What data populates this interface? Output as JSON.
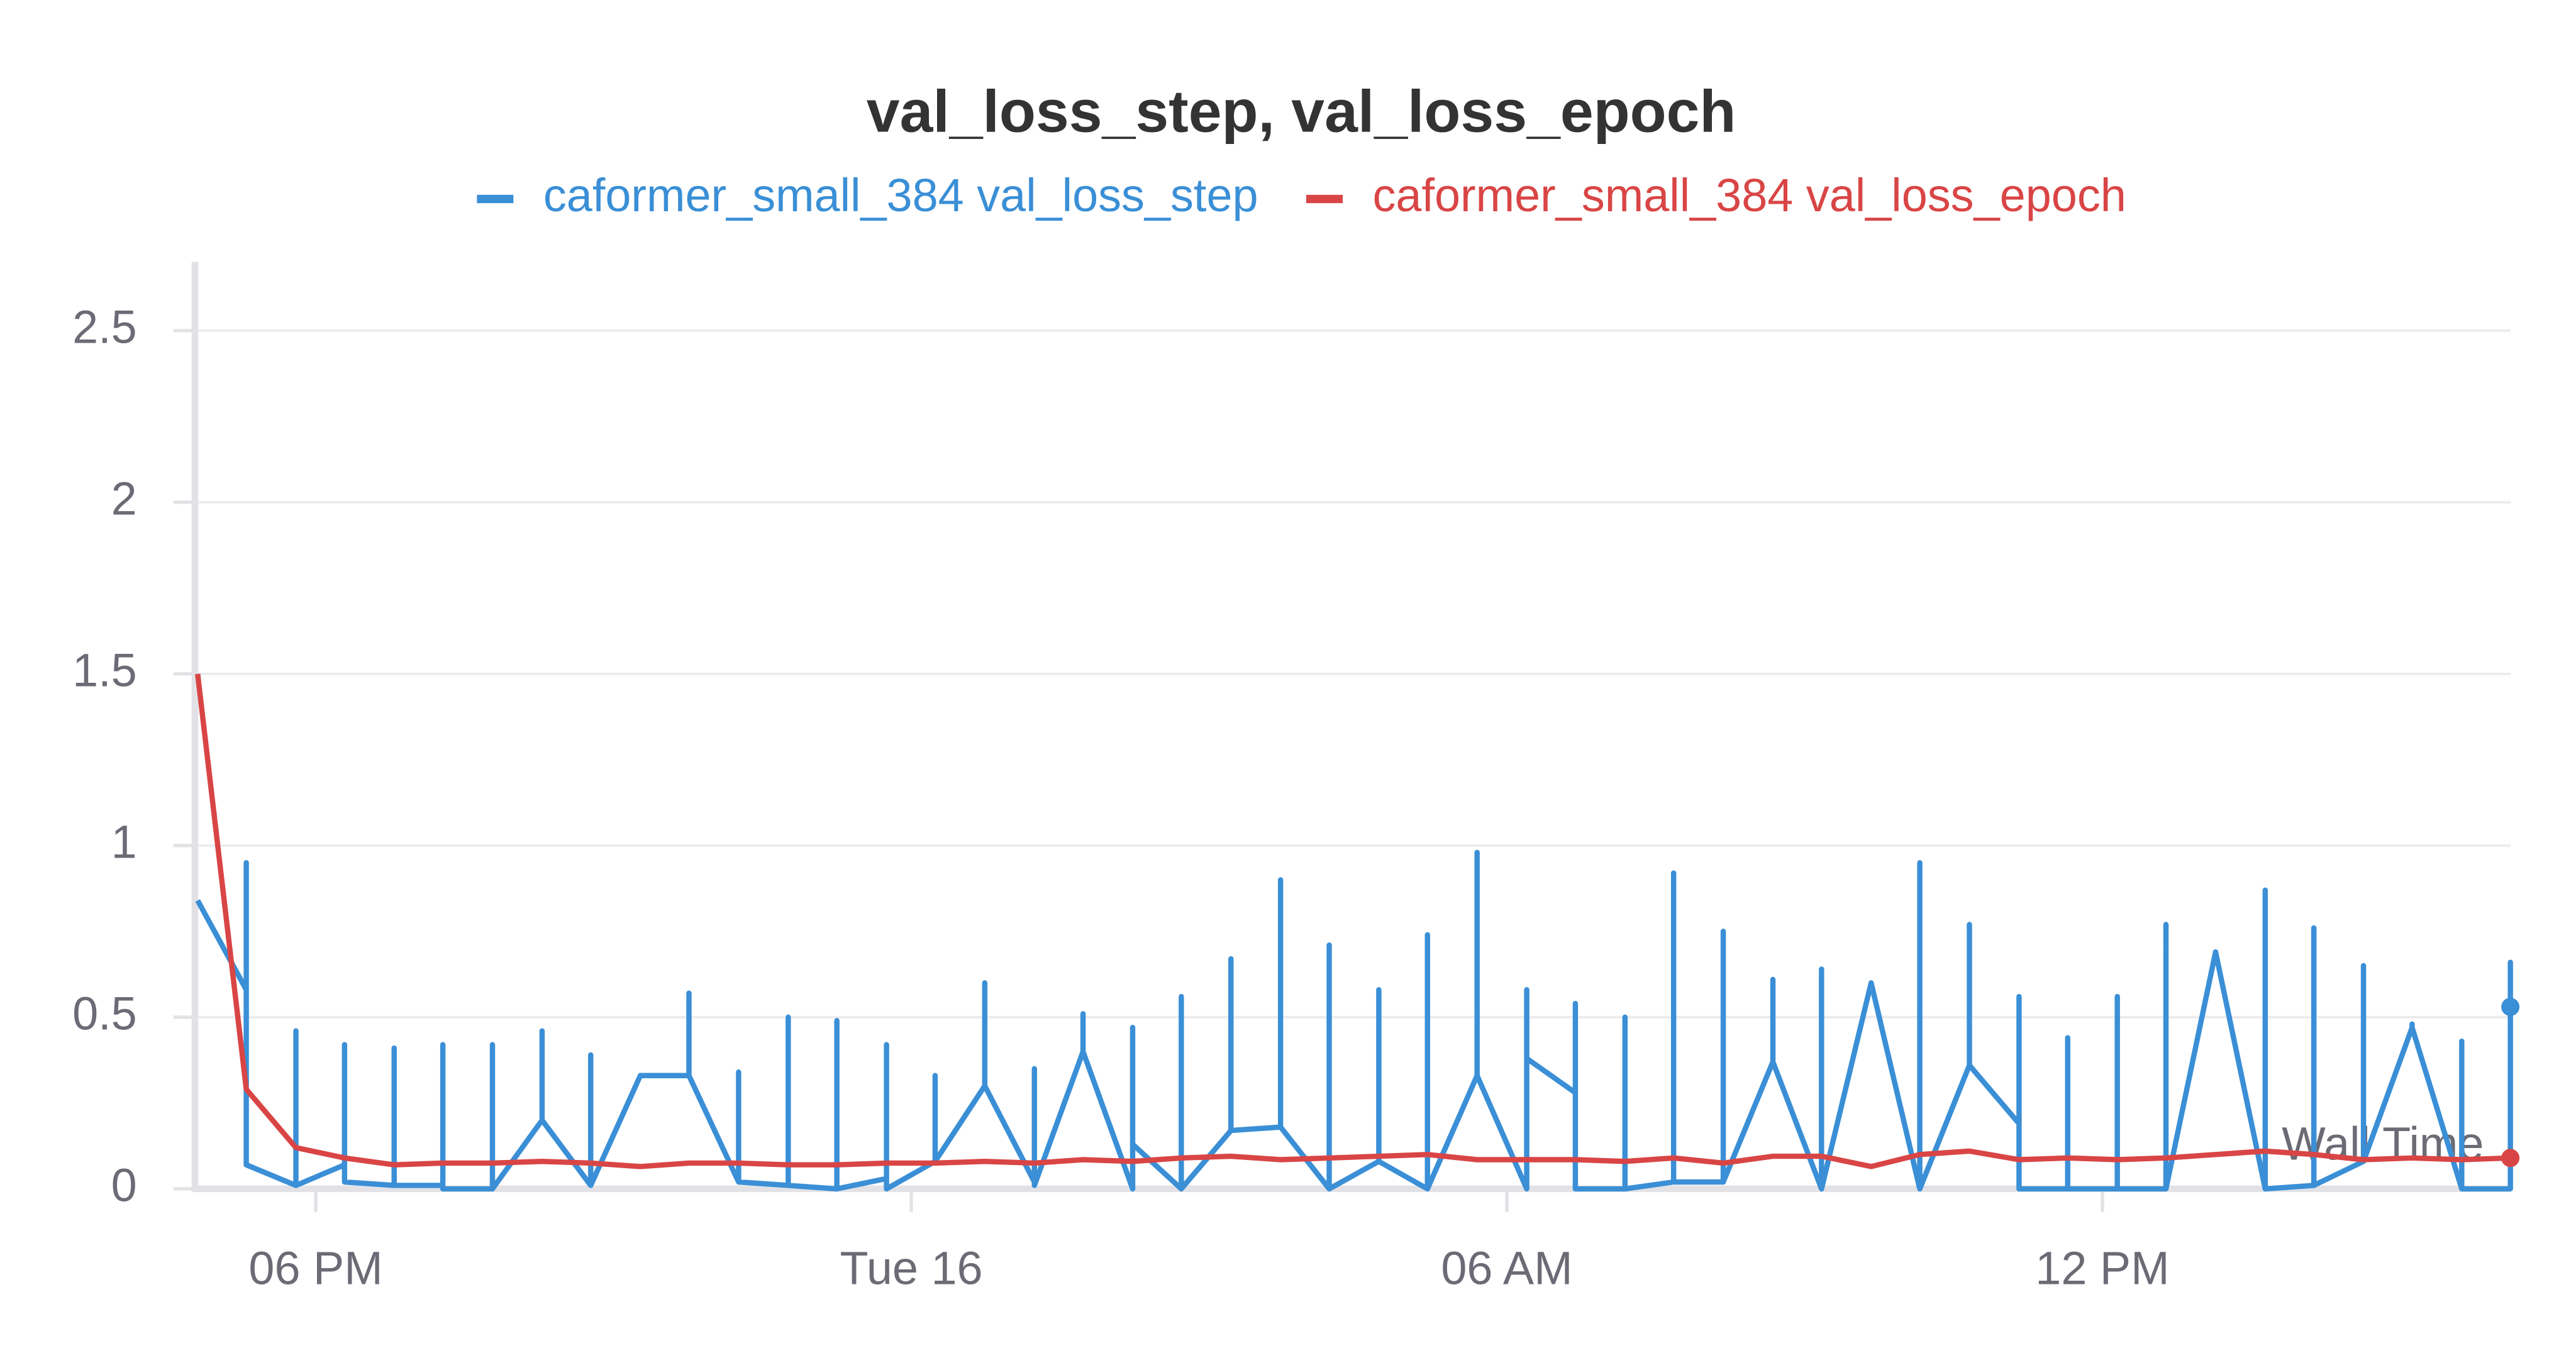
{
  "chart_data": {
    "type": "line",
    "title": "val_loss_step, val_loss_epoch",
    "xlabel": "Wall Time",
    "xlim": [
      16.8,
      40.11
    ],
    "xticks": [
      {
        "value": 18,
        "label": "06 PM"
      },
      {
        "value": 24,
        "label": "Tue 16"
      },
      {
        "value": 30,
        "label": "06 AM"
      },
      {
        "value": 36,
        "label": "12 PM"
      }
    ],
    "ylim": [
      0,
      2.7
    ],
    "yticks": [
      0,
      0.5,
      1,
      1.5,
      2,
      2.5
    ],
    "grid": true,
    "series": [
      {
        "name": "caformer_small_384 val_loss_step",
        "color": "#3a8fd6",
        "x": [
          16.81,
          17.3,
          17.3,
          17.3,
          17.8,
          17.8,
          17.8,
          18.29,
          18.29,
          18.29,
          18.79,
          18.79,
          18.79,
          19.28,
          19.28,
          19.28,
          19.78,
          19.78,
          19.78,
          20.28,
          20.28,
          20.28,
          20.77,
          20.77,
          20.77,
          21.27,
          21.27,
          21.27,
          21.76,
          21.76,
          21.76,
          22.26,
          22.26,
          22.26,
          22.76,
          22.76,
          22.76,
          23.25,
          23.25,
          23.25,
          23.75,
          23.75,
          23.75,
          24.24,
          24.24,
          24.24,
          24.74,
          24.74,
          24.74,
          25.24,
          25.24,
          25.24,
          25.73,
          25.73,
          25.73,
          26.23,
          26.23,
          26.23,
          26.72,
          26.72,
          26.72,
          27.22,
          27.22,
          27.22,
          27.72,
          27.72,
          27.72,
          28.21,
          28.21,
          28.21,
          28.71,
          28.71,
          28.71,
          29.2,
          29.2,
          29.2,
          29.7,
          29.7,
          29.7,
          30.2,
          30.2,
          30.2,
          30.69,
          30.69,
          30.69,
          31.19,
          31.19,
          31.19,
          31.68,
          31.68,
          31.68,
          32.18,
          32.18,
          32.18,
          32.68,
          32.68,
          32.68,
          33.17,
          33.17,
          33.17,
          33.67,
          33.67,
          33.67,
          34.16,
          34.16,
          34.16,
          34.66,
          34.66,
          34.66,
          35.16,
          35.16,
          35.16,
          35.65,
          35.65,
          35.65,
          36.15,
          36.15,
          36.15,
          36.64,
          36.64,
          36.64,
          37.14,
          37.14,
          37.14,
          37.64,
          37.64,
          37.64,
          38.13,
          38.13,
          38.13,
          38.63,
          38.63,
          38.63,
          39.12,
          39.12,
          39.12,
          39.62,
          39.62,
          39.62,
          40.11,
          40.11,
          40.11
        ],
        "values": [
          0.84,
          0.58,
          0.95,
          0.07,
          0.01,
          0.46,
          0.01,
          0.07,
          0.42,
          0.02,
          0.01,
          0.41,
          0.01,
          0.01,
          0.42,
          0,
          0,
          0.42,
          0,
          0.2,
          0.46,
          0.2,
          0.01,
          0.39,
          0.01,
          0.33,
          0.33,
          0.33,
          0.33,
          0.57,
          0.33,
          0.02,
          0.34,
          0.02,
          0.01,
          0.5,
          0.01,
          0,
          0.49,
          0,
          0.03,
          0.42,
          0,
          0.08,
          0.33,
          0.08,
          0.3,
          0.6,
          0.3,
          0.02,
          0.35,
          0.01,
          0.4,
          0.51,
          0.4,
          0,
          0.47,
          0.13,
          0,
          0.56,
          0,
          0.17,
          0.67,
          0.17,
          0.18,
          0.9,
          0.18,
          0,
          0.71,
          0,
          0.08,
          0.58,
          0.08,
          0,
          0.74,
          0,
          0.33,
          0.98,
          0.33,
          0,
          0.58,
          0.38,
          0.28,
          0.54,
          0,
          0,
          0.5,
          0,
          0.02,
          0.92,
          0.02,
          0.02,
          0.75,
          0.02,
          0.37,
          0.61,
          0.37,
          0,
          0.64,
          0,
          0.6,
          0.6,
          0.6,
          0,
          0.95,
          0,
          0.36,
          0.77,
          0.36,
          0.19,
          0.56,
          0,
          0,
          0.44,
          0,
          0,
          0.56,
          0,
          0,
          0.77,
          0,
          0.69,
          0.69,
          0.69,
          0,
          0.87,
          0,
          0.01,
          0.76,
          0.01,
          0.08,
          0.65,
          0.08,
          0.47,
          0.48,
          0.47,
          0,
          0.43,
          0,
          0,
          0.66,
          0.53
        ]
      },
      {
        "name": "caformer_small_384 val_loss_epoch",
        "color": "#d94545",
        "x": [
          16.81,
          17.3,
          17.8,
          18.29,
          18.79,
          19.28,
          19.78,
          20.28,
          20.77,
          21.27,
          21.76,
          22.26,
          22.76,
          23.25,
          23.75,
          24.24,
          24.74,
          25.24,
          25.73,
          26.23,
          26.72,
          27.22,
          27.72,
          28.21,
          28.71,
          29.2,
          29.7,
          30.2,
          30.69,
          31.19,
          31.68,
          32.18,
          32.68,
          33.17,
          33.67,
          34.16,
          34.66,
          35.16,
          35.65,
          36.15,
          36.64,
          37.14,
          37.64,
          38.13,
          38.63,
          39.12,
          39.62,
          40.11
        ],
        "values": [
          1.5,
          0.29,
          0.12,
          0.09,
          0.07,
          0.075,
          0.075,
          0.08,
          0.075,
          0.065,
          0.075,
          0.075,
          0.07,
          0.07,
          0.075,
          0.075,
          0.08,
          0.075,
          0.085,
          0.08,
          0.09,
          0.095,
          0.085,
          0.09,
          0.095,
          0.1,
          0.085,
          0.085,
          0.085,
          0.08,
          0.09,
          0.075,
          0.095,
          0.095,
          0.065,
          0.1,
          0.11,
          0.085,
          0.09,
          0.085,
          0.09,
          0.1,
          0.11,
          0.1,
          0.085,
          0.09,
          0.085,
          0.09
        ]
      }
    ]
  }
}
